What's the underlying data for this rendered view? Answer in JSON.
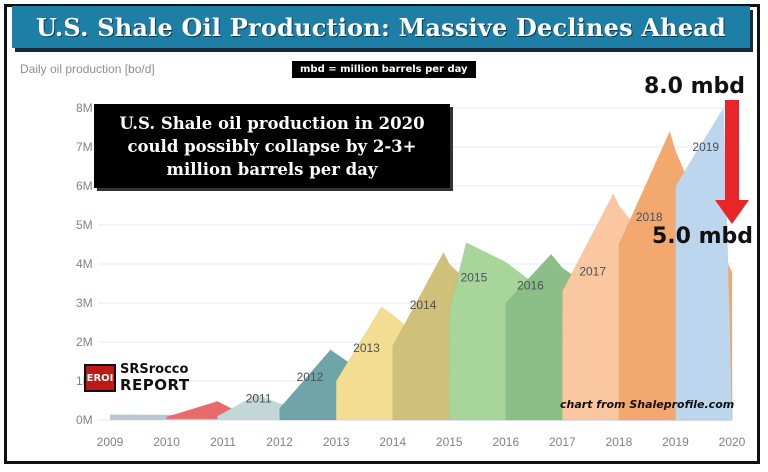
{
  "banner": {
    "title": "U.S. Shale Oil Production: Massive Declines Ahead"
  },
  "note": {
    "mbd": "mbd = million barrels per day"
  },
  "callout": {
    "lines": [
      "U.S. Shale oil production in 2020",
      "could possibly collapse by 2-3+",
      "million barrels per day"
    ]
  },
  "annotations": {
    "start": "8.0 mbd",
    "end": "5.0 mbd",
    "credit": "chart from Shaleprofile.com"
  },
  "logo": {
    "badge": "EROI",
    "top": "SRSrocco",
    "bottom": "REPORT"
  },
  "colors": {
    "arrow": "#e8262a",
    "banner": "#1e7fa6"
  },
  "chart_data": {
    "type": "area",
    "title": "U.S. Shale Oil Production: Massive Declines Ahead",
    "ylabel": "Daily oil production [bo/d]",
    "xlabel": "",
    "ylim": [
      0,
      8000000
    ],
    "xlim": [
      2009,
      2020
    ],
    "y_ticks": [
      {
        "value": 0,
        "label": "0M"
      },
      {
        "value": 1000000,
        "label": "1M"
      },
      {
        "value": 2000000,
        "label": "2M"
      },
      {
        "value": 3000000,
        "label": "3M"
      },
      {
        "value": 4000000,
        "label": "4M"
      },
      {
        "value": 5000000,
        "label": "5M"
      },
      {
        "value": 6000000,
        "label": "6M"
      },
      {
        "value": 7000000,
        "label": "7M"
      },
      {
        "value": 8000000,
        "label": "8M"
      }
    ],
    "x_ticks": [
      "2009",
      "2010",
      "2011",
      "2012",
      "2013",
      "2014",
      "2015",
      "2016",
      "2017",
      "2018",
      "2019",
      "2020"
    ],
    "grid": true,
    "stacked": true,
    "total_series": [
      [
        2009.0,
        150000
      ],
      [
        2010.0,
        200000
      ],
      [
        2010.9,
        500000
      ],
      [
        2011.0,
        450000
      ],
      [
        2011.6,
        900000
      ],
      [
        2012.0,
        1100000
      ],
      [
        2012.9,
        2100000
      ],
      [
        2013.0,
        2000000
      ],
      [
        2013.8,
        3300000
      ],
      [
        2014.0,
        3400000
      ],
      [
        2014.9,
        4400000
      ],
      [
        2015.0,
        4300000
      ],
      [
        2015.3,
        4550000
      ],
      [
        2016.0,
        4300000
      ],
      [
        2016.8,
        4250000
      ],
      [
        2017.0,
        4500000
      ],
      [
        2017.9,
        5800000
      ],
      [
        2018.0,
        6000000
      ],
      [
        2018.9,
        7400000
      ],
      [
        2019.0,
        7300000
      ],
      [
        2019.5,
        7800000
      ],
      [
        2019.85,
        8000000
      ],
      [
        2019.97,
        2100000
      ],
      [
        2020.0,
        0
      ]
    ],
    "series": [
      {
        "name": "2011",
        "color": "#c3d7d7",
        "label": "2011",
        "label_x": 2011.4,
        "label_y": 450000,
        "points": [
          [
            2010.9,
            100000
          ],
          [
            2011.6,
            650000
          ],
          [
            2012.0,
            420000
          ],
          [
            2013,
            300000
          ],
          [
            2014,
            260000
          ],
          [
            2015,
            230000
          ],
          [
            2016,
            200000
          ],
          [
            2017,
            180000
          ],
          [
            2018,
            160000
          ],
          [
            2019,
            150000
          ],
          [
            2020,
            130000
          ]
        ]
      },
      {
        "name": "2012",
        "color": "#6fa5a8",
        "label": "2012",
        "label_x": 2012.3,
        "label_y": 1000000,
        "points": [
          [
            2012.0,
            300000
          ],
          [
            2012.9,
            1800000
          ],
          [
            2013.0,
            1700000
          ],
          [
            2013.5,
            1200000
          ],
          [
            2014,
            900000
          ],
          [
            2015,
            700000
          ],
          [
            2016,
            560000
          ],
          [
            2017,
            480000
          ],
          [
            2018,
            420000
          ],
          [
            2019,
            380000
          ],
          [
            2020,
            330000
          ]
        ]
      },
      {
        "name": "2013",
        "color": "#f2dd91",
        "label": "2013",
        "label_x": 2013.3,
        "label_y": 1750000,
        "points": [
          [
            2013.0,
            1000000
          ],
          [
            2013.8,
            2900000
          ],
          [
            2014.0,
            2700000
          ],
          [
            2014.5,
            2100000
          ],
          [
            2015,
            1700000
          ],
          [
            2016,
            1300000
          ],
          [
            2017,
            1100000
          ],
          [
            2018,
            950000
          ],
          [
            2019,
            850000
          ],
          [
            2020,
            750000
          ]
        ]
      },
      {
        "name": "2014",
        "color": "#cfc07a",
        "label": "2014",
        "label_x": 2014.3,
        "label_y": 2850000,
        "points": [
          [
            2014.0,
            1900000
          ],
          [
            2014.9,
            4300000
          ],
          [
            2015.0,
            4000000
          ],
          [
            2015.5,
            3300000
          ],
          [
            2016,
            2600000
          ],
          [
            2017,
            2050000
          ],
          [
            2018,
            1750000
          ],
          [
            2019,
            1550000
          ],
          [
            2020,
            1350000
          ]
        ]
      },
      {
        "name": "2015",
        "color": "#a8d59a",
        "label": "2015",
        "label_x": 2015.2,
        "label_y": 3550000,
        "points": [
          [
            2015.0,
            2800000
          ],
          [
            2015.3,
            4550000
          ],
          [
            2016.0,
            4050000
          ],
          [
            2016.5,
            3500000
          ],
          [
            2017,
            3000000
          ],
          [
            2018,
            2500000
          ],
          [
            2019,
            2150000
          ],
          [
            2020,
            1900000
          ]
        ]
      },
      {
        "name": "2016",
        "color": "#8bbf87",
        "label": "2016",
        "label_x": 2016.2,
        "label_y": 3350000,
        "points": [
          [
            2016.0,
            3000000
          ],
          [
            2016.8,
            4250000
          ],
          [
            2017.0,
            3900000
          ],
          [
            2017.5,
            3400000
          ],
          [
            2018,
            2950000
          ],
          [
            2019,
            2500000
          ],
          [
            2020,
            2200000
          ]
        ]
      },
      {
        "name": "2017",
        "color": "#fbc7a0",
        "label": "2017",
        "label_x": 2017.3,
        "label_y": 3700000,
        "points": [
          [
            2017.0,
            3300000
          ],
          [
            2017.9,
            5800000
          ],
          [
            2018.0,
            5500000
          ],
          [
            2018.5,
            4600000
          ],
          [
            2019,
            3900000
          ],
          [
            2020,
            3200000
          ]
        ]
      },
      {
        "name": "2018",
        "color": "#f3a86e",
        "label": "2018",
        "label_x": 2018.3,
        "label_y": 5100000,
        "points": [
          [
            2018.0,
            4500000
          ],
          [
            2018.9,
            7400000
          ],
          [
            2019.0,
            6900000
          ],
          [
            2019.5,
            5200000
          ],
          [
            2020,
            3800000
          ]
        ]
      },
      {
        "name": "2019",
        "color": "#bcd6ee",
        "label": "2019",
        "label_x": 2019.3,
        "label_y": 6900000,
        "points": [
          [
            2019.0,
            6000000
          ],
          [
            2019.85,
            8000000
          ],
          [
            2019.97,
            2100000
          ],
          [
            2020,
            0
          ]
        ]
      }
    ],
    "legacy_bands": [
      {
        "name": "2009",
        "color": "#b7c9d1"
      },
      {
        "name": "2010",
        "color": "#e76b6b"
      }
    ]
  }
}
